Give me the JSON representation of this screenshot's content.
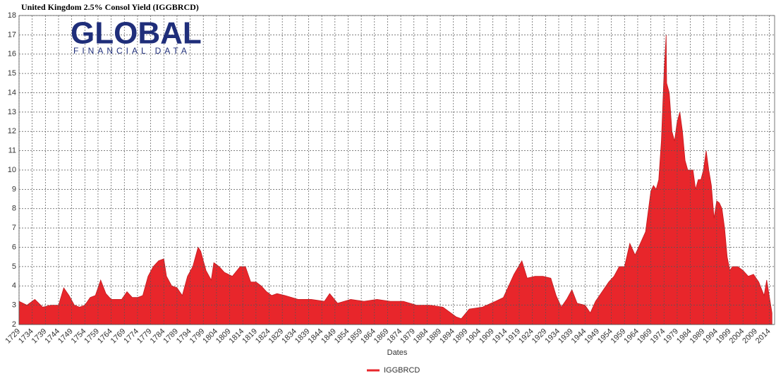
{
  "chart_data": {
    "type": "area",
    "title": "United Kingdom 2.5% Consol Yield (IGGBRCD)",
    "logo": {
      "name": "GLOBAL",
      "tagline": "FINANCIAL DATA"
    },
    "xlabel": "Dates",
    "grid": true,
    "legend": "bottom",
    "xlim": [
      1729,
      2016
    ],
    "ylim": [
      2,
      18
    ],
    "yticks": [
      2,
      3,
      4,
      5,
      6,
      7,
      8,
      9,
      10,
      11,
      12,
      13,
      14,
      15,
      16,
      17,
      18
    ],
    "xticks": [
      1729,
      1734,
      1739,
      1744,
      1749,
      1754,
      1759,
      1764,
      1769,
      1774,
      1779,
      1784,
      1789,
      1794,
      1799,
      1804,
      1809,
      1814,
      1819,
      1824,
      1829,
      1834,
      1839,
      1844,
      1849,
      1854,
      1859,
      1864,
      1869,
      1874,
      1879,
      1884,
      1889,
      1894,
      1899,
      1904,
      1909,
      1914,
      1919,
      1924,
      1929,
      1934,
      1939,
      1944,
      1949,
      1954,
      1959,
      1964,
      1969,
      1974,
      1979,
      1984,
      1989,
      1994,
      1999,
      2004,
      2009,
      2014
    ],
    "series": [
      {
        "name": "IGGBRCD",
        "color": "#e8262b",
        "x": [
          1729,
          1732,
          1735,
          1738,
          1741,
          1744,
          1746,
          1748,
          1750,
          1752,
          1754,
          1756,
          1758,
          1760,
          1762,
          1764,
          1766,
          1768,
          1770,
          1772,
          1774,
          1776,
          1778,
          1780,
          1782,
          1784,
          1785,
          1787,
          1789,
          1791,
          1793,
          1795,
          1797,
          1798,
          1800,
          1802,
          1803,
          1805,
          1807,
          1810,
          1813,
          1815,
          1817,
          1819,
          1821,
          1823,
          1825,
          1827,
          1830,
          1835,
          1840,
          1845,
          1847,
          1850,
          1855,
          1860,
          1865,
          1870,
          1875,
          1880,
          1885,
          1890,
          1895,
          1897,
          1900,
          1905,
          1910,
          1913,
          1915,
          1917,
          1920,
          1922,
          1925,
          1928,
          1931,
          1933,
          1935,
          1937,
          1939,
          1941,
          1944,
          1946,
          1948,
          1951,
          1953,
          1955,
          1957,
          1959,
          1961,
          1963,
          1965,
          1967,
          1969,
          1970,
          1971,
          1972,
          1973,
          1974,
          1974.8,
          1975,
          1976,
          1977,
          1978,
          1979,
          1980,
          1981,
          1982,
          1983,
          1984,
          1985,
          1986,
          1987,
          1988,
          1989,
          1990,
          1991,
          1992,
          1993,
          1994,
          1995,
          1996,
          1997,
          1998,
          1999,
          2000,
          2002,
          2004,
          2006,
          2008,
          2010,
          2012,
          2013,
          2015
        ],
        "values": [
          3.2,
          3.0,
          3.3,
          2.9,
          3.0,
          3.0,
          3.9,
          3.5,
          3.0,
          2.9,
          3.0,
          3.4,
          3.5,
          4.3,
          3.6,
          3.3,
          3.3,
          3.3,
          3.7,
          3.4,
          3.4,
          3.5,
          4.5,
          5.0,
          5.3,
          5.4,
          4.5,
          4.0,
          3.9,
          3.5,
          4.5,
          5.0,
          6.0,
          5.8,
          4.8,
          4.3,
          5.2,
          5.0,
          4.7,
          4.5,
          5.0,
          5.0,
          4.2,
          4.2,
          4.0,
          3.7,
          3.5,
          3.6,
          3.5,
          3.3,
          3.3,
          3.2,
          3.6,
          3.1,
          3.3,
          3.2,
          3.3,
          3.2,
          3.2,
          3.0,
          3.0,
          2.9,
          2.4,
          2.3,
          2.8,
          2.9,
          3.2,
          3.4,
          4.0,
          4.6,
          5.3,
          4.4,
          4.5,
          4.5,
          4.4,
          3.5,
          2.9,
          3.3,
          3.8,
          3.1,
          3.0,
          2.6,
          3.2,
          3.8,
          4.2,
          4.5,
          5.0,
          5.0,
          6.2,
          5.6,
          6.2,
          6.8,
          8.9,
          9.2,
          9.0,
          9.5,
          11.5,
          15.0,
          17.0,
          14.5,
          14.0,
          12.0,
          11.5,
          12.5,
          13.0,
          12.0,
          10.5,
          10.0,
          10.0,
          10.0,
          9.0,
          9.5,
          9.5,
          10.0,
          11.0,
          10.0,
          9.2,
          7.5,
          8.4,
          8.3,
          8.0,
          7.0,
          5.5,
          4.8,
          5.0,
          5.0,
          4.8,
          4.5,
          4.6,
          4.2,
          3.5,
          4.3,
          2.6
        ]
      }
    ]
  }
}
